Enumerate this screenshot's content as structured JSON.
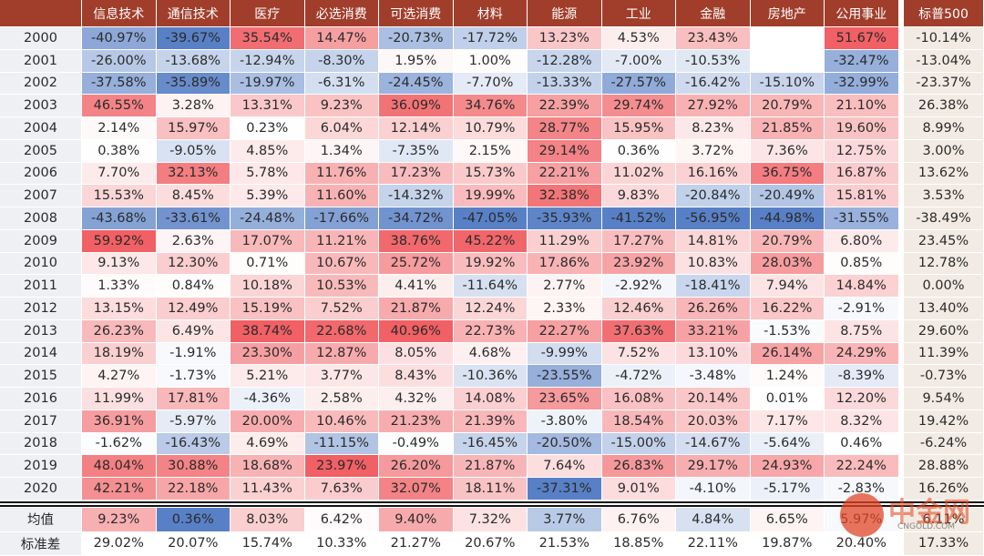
{
  "table": {
    "header": [
      "信息技术",
      "通信技术",
      "医疗",
      "必选消费",
      "可选消费",
      "材料",
      "能源",
      "工业",
      "金融",
      "房地产",
      "公用事业",
      "标普500"
    ],
    "rows": [
      {
        "label": "2000",
        "values": [
          "-40.97%",
          "-39.67%",
          "35.54%",
          "14.47%",
          "-20.73%",
          "-17.72%",
          "13.23%",
          "4.53%",
          "23.43%",
          null,
          "51.67%",
          "-10.14%"
        ]
      },
      {
        "label": "2001",
        "values": [
          "-26.00%",
          "-13.68%",
          "-12.94%",
          "-8.30%",
          "1.95%",
          "1.00%",
          "-12.28%",
          "-7.00%",
          "-10.53%",
          null,
          "-32.47%",
          "-13.04%"
        ]
      },
      {
        "label": "2002",
        "values": [
          "-37.58%",
          "-35.89%",
          "-19.97%",
          "-6.31%",
          "-24.45%",
          "-7.70%",
          "-13.33%",
          "-27.57%",
          "-16.42%",
          "-15.10%",
          "-32.99%",
          "-23.37%"
        ]
      },
      {
        "label": "2003",
        "values": [
          "46.55%",
          "3.28%",
          "13.31%",
          "9.23%",
          "36.09%",
          "34.76%",
          "22.39%",
          "29.74%",
          "27.92%",
          "20.79%",
          "21.10%",
          "26.38%"
        ]
      },
      {
        "label": "2004",
        "values": [
          "2.14%",
          "15.97%",
          "0.23%",
          "6.04%",
          "12.14%",
          "10.79%",
          "28.77%",
          "15.95%",
          "8.23%",
          "21.85%",
          "19.60%",
          "8.99%"
        ]
      },
      {
        "label": "2005",
        "values": [
          "0.38%",
          "-9.05%",
          "4.85%",
          "1.34%",
          "-7.35%",
          "2.15%",
          "29.14%",
          "0.36%",
          "3.72%",
          "7.36%",
          "12.75%",
          "3.00%"
        ]
      },
      {
        "label": "2006",
        "values": [
          "7.70%",
          "32.13%",
          "5.78%",
          "11.76%",
          "17.23%",
          "15.73%",
          "22.21%",
          "11.02%",
          "16.16%",
          "36.75%",
          "16.87%",
          "13.62%"
        ]
      },
      {
        "label": "2007",
        "values": [
          "15.53%",
          "8.45%",
          "5.39%",
          "11.60%",
          "-14.32%",
          "19.99%",
          "32.38%",
          "9.83%",
          "-20.84%",
          "-20.49%",
          "15.81%",
          "3.53%"
        ]
      },
      {
        "label": "2008",
        "values": [
          "-43.68%",
          "-33.61%",
          "-24.48%",
          "-17.66%",
          "-34.72%",
          "-47.05%",
          "-35.93%",
          "-41.52%",
          "-56.95%",
          "-44.98%",
          "-31.55%",
          "-38.49%"
        ]
      },
      {
        "label": "2009",
        "values": [
          "59.92%",
          "2.63%",
          "17.07%",
          "11.21%",
          "38.76%",
          "45.22%",
          "11.29%",
          "17.27%",
          "14.81%",
          "20.79%",
          "6.80%",
          "23.45%"
        ]
      },
      {
        "label": "2010",
        "values": [
          "9.13%",
          "12.30%",
          "0.71%",
          "10.67%",
          "25.72%",
          "19.92%",
          "17.86%",
          "23.92%",
          "10.83%",
          "28.03%",
          "0.85%",
          "12.78%"
        ]
      },
      {
        "label": "2011",
        "values": [
          "1.33%",
          "0.84%",
          "10.18%",
          "10.53%",
          "4.41%",
          "-11.64%",
          "2.77%",
          "-2.92%",
          "-18.41%",
          "7.94%",
          "14.84%",
          "0.00%"
        ]
      },
      {
        "label": "2012",
        "values": [
          "13.15%",
          "12.49%",
          "15.19%",
          "7.52%",
          "21.87%",
          "12.24%",
          "2.33%",
          "12.46%",
          "26.26%",
          "16.22%",
          "-2.91%",
          "13.40%"
        ]
      },
      {
        "label": "2013",
        "values": [
          "26.23%",
          "6.49%",
          "38.74%",
          "22.68%",
          "40.96%",
          "22.73%",
          "22.27%",
          "37.63%",
          "33.21%",
          "-1.53%",
          "8.75%",
          "29.60%"
        ]
      },
      {
        "label": "2014",
        "values": [
          "18.19%",
          "-1.91%",
          "23.30%",
          "12.87%",
          "8.05%",
          "4.68%",
          "-9.99%",
          "7.52%",
          "13.10%",
          "26.14%",
          "24.29%",
          "11.39%"
        ]
      },
      {
        "label": "2015",
        "values": [
          "4.27%",
          "-1.73%",
          "5.21%",
          "3.77%",
          "8.43%",
          "-10.36%",
          "-23.55%",
          "-4.72%",
          "-3.48%",
          "1.24%",
          "-8.39%",
          "-0.73%"
        ]
      },
      {
        "label": "2016",
        "values": [
          "11.99%",
          "17.81%",
          "-4.36%",
          "2.58%",
          "4.32%",
          "14.08%",
          "23.65%",
          "16.08%",
          "20.14%",
          "0.01%",
          "12.20%",
          "9.54%"
        ]
      },
      {
        "label": "2017",
        "values": [
          "36.91%",
          "-5.97%",
          "20.00%",
          "10.46%",
          "21.23%",
          "21.39%",
          "-3.80%",
          "18.54%",
          "20.03%",
          "7.17%",
          "8.32%",
          "19.42%"
        ]
      },
      {
        "label": "2018",
        "values": [
          "-1.62%",
          "-16.43%",
          "4.69%",
          "-11.15%",
          "-0.49%",
          "-16.45%",
          "-20.50%",
          "-15.00%",
          "-14.67%",
          "-5.64%",
          "0.46%",
          "-6.24%"
        ]
      },
      {
        "label": "2019",
        "values": [
          "48.04%",
          "30.88%",
          "18.68%",
          "23.97%",
          "26.20%",
          "21.87%",
          "7.64%",
          "26.83%",
          "29.17%",
          "24.93%",
          "22.24%",
          "28.88%"
        ]
      },
      {
        "label": "2020",
        "values": [
          "42.21%",
          "22.18%",
          "11.43%",
          "7.63%",
          "32.07%",
          "18.11%",
          "-37.31%",
          "9.01%",
          "-4.10%",
          "-5.17%",
          "-2.83%",
          "16.26%"
        ]
      }
    ],
    "summary": [
      {
        "label": "均值",
        "values": [
          "9.23%",
          "0.36%",
          "8.03%",
          "6.42%",
          "9.40%",
          "7.32%",
          "3.77%",
          "6.76%",
          "4.84%",
          "6.65%",
          "5.97%",
          "6.11%"
        ]
      },
      {
        "label": "标准差",
        "values": [
          "29.02%",
          "20.07%",
          "15.74%",
          "10.33%",
          "21.27%",
          "20.67%",
          "21.53%",
          "18.85%",
          "22.11%",
          "19.87%",
          "20.40%",
          "17.33%"
        ]
      }
    ]
  },
  "watermark": {
    "name": "中金网",
    "site": "CNGOLD.COM"
  }
}
